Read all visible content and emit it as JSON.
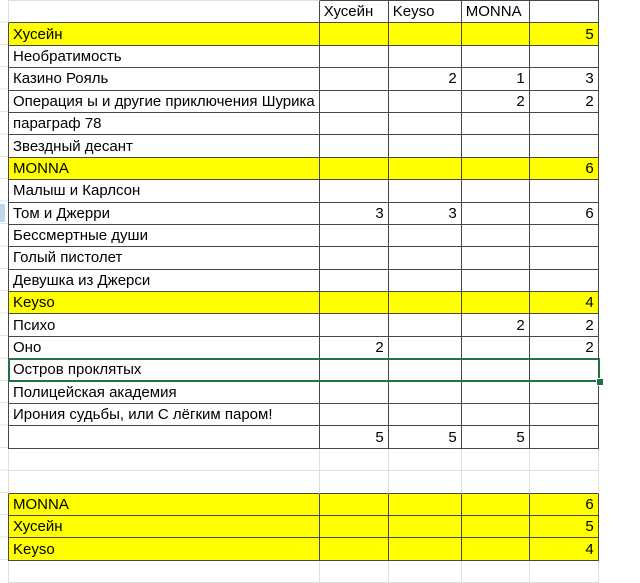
{
  "sheet": {
    "columns": [
      {
        "label": ""
      },
      {
        "label": "Хусейн"
      },
      {
        "label": "Keyso"
      },
      {
        "label": "MONNA"
      },
      {
        "label": ""
      }
    ],
    "rows": [
      {
        "cells": [
          "Хусейн",
          "",
          "",
          "",
          "5"
        ],
        "highlight": true
      },
      {
        "cells": [
          "Необратимость",
          "",
          "",
          "",
          ""
        ]
      },
      {
        "cells": [
          "Казино Рояль",
          "",
          "2",
          "1",
          "3"
        ]
      },
      {
        "cells": [
          "Операция ы и другие приключения Шурика",
          "",
          "",
          "2",
          "2"
        ]
      },
      {
        "cells": [
          "параграф 78",
          "",
          "",
          "",
          ""
        ]
      },
      {
        "cells": [
          "Звездный десант",
          "",
          "",
          "",
          ""
        ]
      },
      {
        "cells": [
          "MONNA",
          "",
          "",
          "",
          "6"
        ],
        "highlight": true
      },
      {
        "cells": [
          "Малыш и Карлсон",
          "",
          "",
          "",
          ""
        ]
      },
      {
        "cells": [
          "Том и Джерри",
          "3",
          "3",
          "",
          "6"
        ]
      },
      {
        "cells": [
          "Бессмертные души",
          "",
          "",
          "",
          ""
        ]
      },
      {
        "cells": [
          "Голый пистолет",
          "",
          "",
          "",
          ""
        ]
      },
      {
        "cells": [
          "Девушка из Джерси",
          "",
          "",
          "",
          ""
        ]
      },
      {
        "cells": [
          "Keyso",
          "",
          "",
          "",
          "4"
        ],
        "highlight": true
      },
      {
        "cells": [
          "Психо",
          "",
          "",
          "2",
          "2"
        ]
      },
      {
        "cells": [
          "Оно",
          "2",
          "",
          "",
          "2"
        ]
      },
      {
        "cells": [
          "Остров проклятых",
          "",
          "",
          "",
          ""
        ],
        "selected": true
      },
      {
        "cells": [
          "Полицейская академия",
          "",
          "",
          "",
          ""
        ]
      },
      {
        "cells": [
          "Ирония судьбы, или С лёгким паром!",
          "",
          "",
          "",
          ""
        ]
      },
      {
        "cells": [
          "",
          "5",
          "5",
          "5",
          ""
        ]
      }
    ],
    "summary_rows": [
      {
        "cells": [
          "MONNA",
          "",
          "",
          "",
          "6"
        ],
        "highlight": true
      },
      {
        "cells": [
          "Хусейн",
          "",
          "",
          "",
          "5"
        ],
        "highlight": true
      },
      {
        "cells": [
          "Keyso",
          "",
          "",
          "",
          "4"
        ],
        "highlight": true
      }
    ],
    "selected_row_index": 15
  },
  "colors": {
    "highlight": "#ffff00",
    "cell_border": "#474747",
    "gridline": "#dedede",
    "selection_border": "#1f7245",
    "marker_blue": "#bdd7ee"
  }
}
